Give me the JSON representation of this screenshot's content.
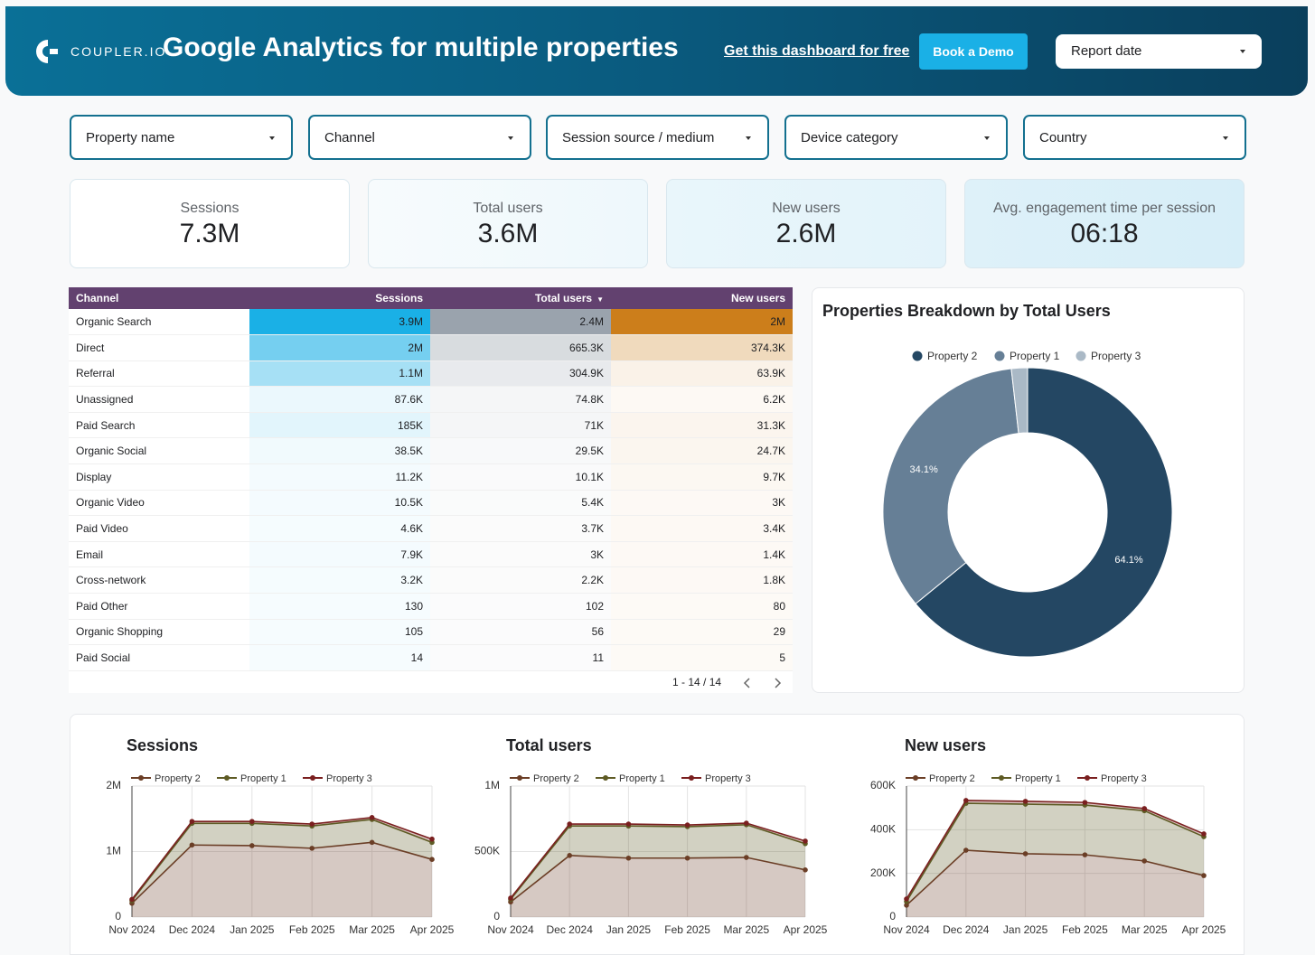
{
  "header": {
    "logo": "COUPLER.IO",
    "title": "Google Analytics for multiple properties",
    "link": "Get this dashboard for free",
    "button": "Book a Demo",
    "report_date": "Report date"
  },
  "filters": [
    "Property name",
    "Channel",
    "Session source / medium",
    "Device category",
    "Country"
  ],
  "kpis": [
    {
      "label": "Sessions",
      "value": "7.3M"
    },
    {
      "label": "Total users",
      "value": "3.6M"
    },
    {
      "label": "New users",
      "value": "2.6M"
    },
    {
      "label": "Avg. engagement time per session",
      "value": "06:18"
    }
  ],
  "table": {
    "columns": [
      "Channel",
      "Sessions",
      "Total users",
      "New users"
    ],
    "rows": [
      [
        "Organic Search",
        "3.9M",
        "2.4M",
        "2M"
      ],
      [
        "Direct",
        "2M",
        "665.3K",
        "374.3K"
      ],
      [
        "Referral",
        "1.1M",
        "304.9K",
        "63.9K"
      ],
      [
        "Unassigned",
        "87.6K",
        "74.8K",
        "6.2K"
      ],
      [
        "Paid Search",
        "185K",
        "71K",
        "31.3K"
      ],
      [
        "Organic Social",
        "38.5K",
        "29.5K",
        "24.7K"
      ],
      [
        "Display",
        "11.2K",
        "10.1K",
        "9.7K"
      ],
      [
        "Organic Video",
        "10.5K",
        "5.4K",
        "3K"
      ],
      [
        "Paid Video",
        "4.6K",
        "3.7K",
        "3.4K"
      ],
      [
        "Email",
        "7.9K",
        "3K",
        "1.4K"
      ],
      [
        "Cross-network",
        "3.2K",
        "2.2K",
        "1.8K"
      ],
      [
        "Paid Other",
        "130",
        "102",
        "80"
      ],
      [
        "Organic Shopping",
        "105",
        "56",
        "29"
      ],
      [
        "Paid Social",
        "14",
        "11",
        "5"
      ]
    ],
    "pagination": "1 - 14 / 14"
  },
  "chart_data": [
    {
      "type": "pie",
      "title": "Properties Breakdown by Total Users",
      "categories": [
        "Property 2",
        "Property 1",
        "Property 3"
      ],
      "values": [
        64.1,
        34.1,
        1.8
      ],
      "value_labels": [
        "64.1%",
        "34.1%",
        null
      ],
      "colors": [
        "#244763",
        "#667f96",
        "#aab9c6"
      ],
      "donut": true,
      "legend": "top"
    },
    {
      "type": "area",
      "stacked": true,
      "title": "Sessions",
      "categories": [
        "Nov 2024",
        "Dec 2024",
        "Jan 2025",
        "Feb 2025",
        "Mar 2025",
        "Apr 2025"
      ],
      "series": [
        {
          "name": "Property 2",
          "color": "#6b3e26",
          "values": [
            210000,
            1100000,
            1090000,
            1050000,
            1140000,
            880000
          ]
        },
        {
          "name": "Property 1",
          "color": "#5e5b24",
          "values": [
            40000,
            330000,
            340000,
            340000,
            350000,
            260000
          ]
        },
        {
          "name": "Property 3",
          "color": "#7a1f1f",
          "values": [
            20000,
            30000,
            30000,
            30000,
            30000,
            50000
          ]
        }
      ],
      "ylim": [
        0,
        2000000
      ],
      "yticks": [
        0,
        {
          "value": 1000000,
          "label": "1M"
        },
        {
          "value": 2000000,
          "label": "2M"
        }
      ],
      "grid": true,
      "legend": "top"
    },
    {
      "type": "area",
      "stacked": true,
      "title": "Total users",
      "categories": [
        "Nov 2024",
        "Dec 2024",
        "Jan 2025",
        "Feb 2025",
        "Mar 2025",
        "Apr 2025"
      ],
      "series": [
        {
          "name": "Property 2",
          "color": "#6b3e26",
          "values": [
            115000,
            470000,
            450000,
            450000,
            455000,
            360000
          ]
        },
        {
          "name": "Property 1",
          "color": "#5e5b24",
          "values": [
            20000,
            225000,
            245000,
            240000,
            250000,
            200000
          ]
        },
        {
          "name": "Property 3",
          "color": "#7a1f1f",
          "values": [
            10000,
            15000,
            15000,
            13000,
            12000,
            20000
          ]
        }
      ],
      "ylim": [
        0,
        1000000
      ],
      "yticks": [
        0,
        {
          "value": 500000,
          "label": "500K"
        },
        {
          "value": 1000000,
          "label": "1M"
        }
      ],
      "grid": true,
      "legend": "top"
    },
    {
      "type": "area",
      "stacked": true,
      "title": "New users",
      "categories": [
        "Nov 2024",
        "Dec 2024",
        "Jan 2025",
        "Feb 2025",
        "Mar 2025",
        "Apr 2025"
      ],
      "series": [
        {
          "name": "Property 2",
          "color": "#6b3e26",
          "values": [
            54000,
            306000,
            290000,
            285000,
            257000,
            190000
          ]
        },
        {
          "name": "Property 1",
          "color": "#5e5b24",
          "values": [
            17000,
            215000,
            227000,
            228000,
            230000,
            178000
          ]
        },
        {
          "name": "Property 3",
          "color": "#7a1f1f",
          "values": [
            12000,
            13000,
            13000,
            12000,
            10000,
            13000
          ]
        }
      ],
      "ylim": [
        0,
        600000
      ],
      "yticks": [
        0,
        {
          "value": 200000,
          "label": "200K"
        },
        {
          "value": 400000,
          "label": "400K"
        },
        {
          "value": 600000,
          "label": "600K"
        }
      ],
      "grid": true,
      "legend": "top"
    }
  ]
}
